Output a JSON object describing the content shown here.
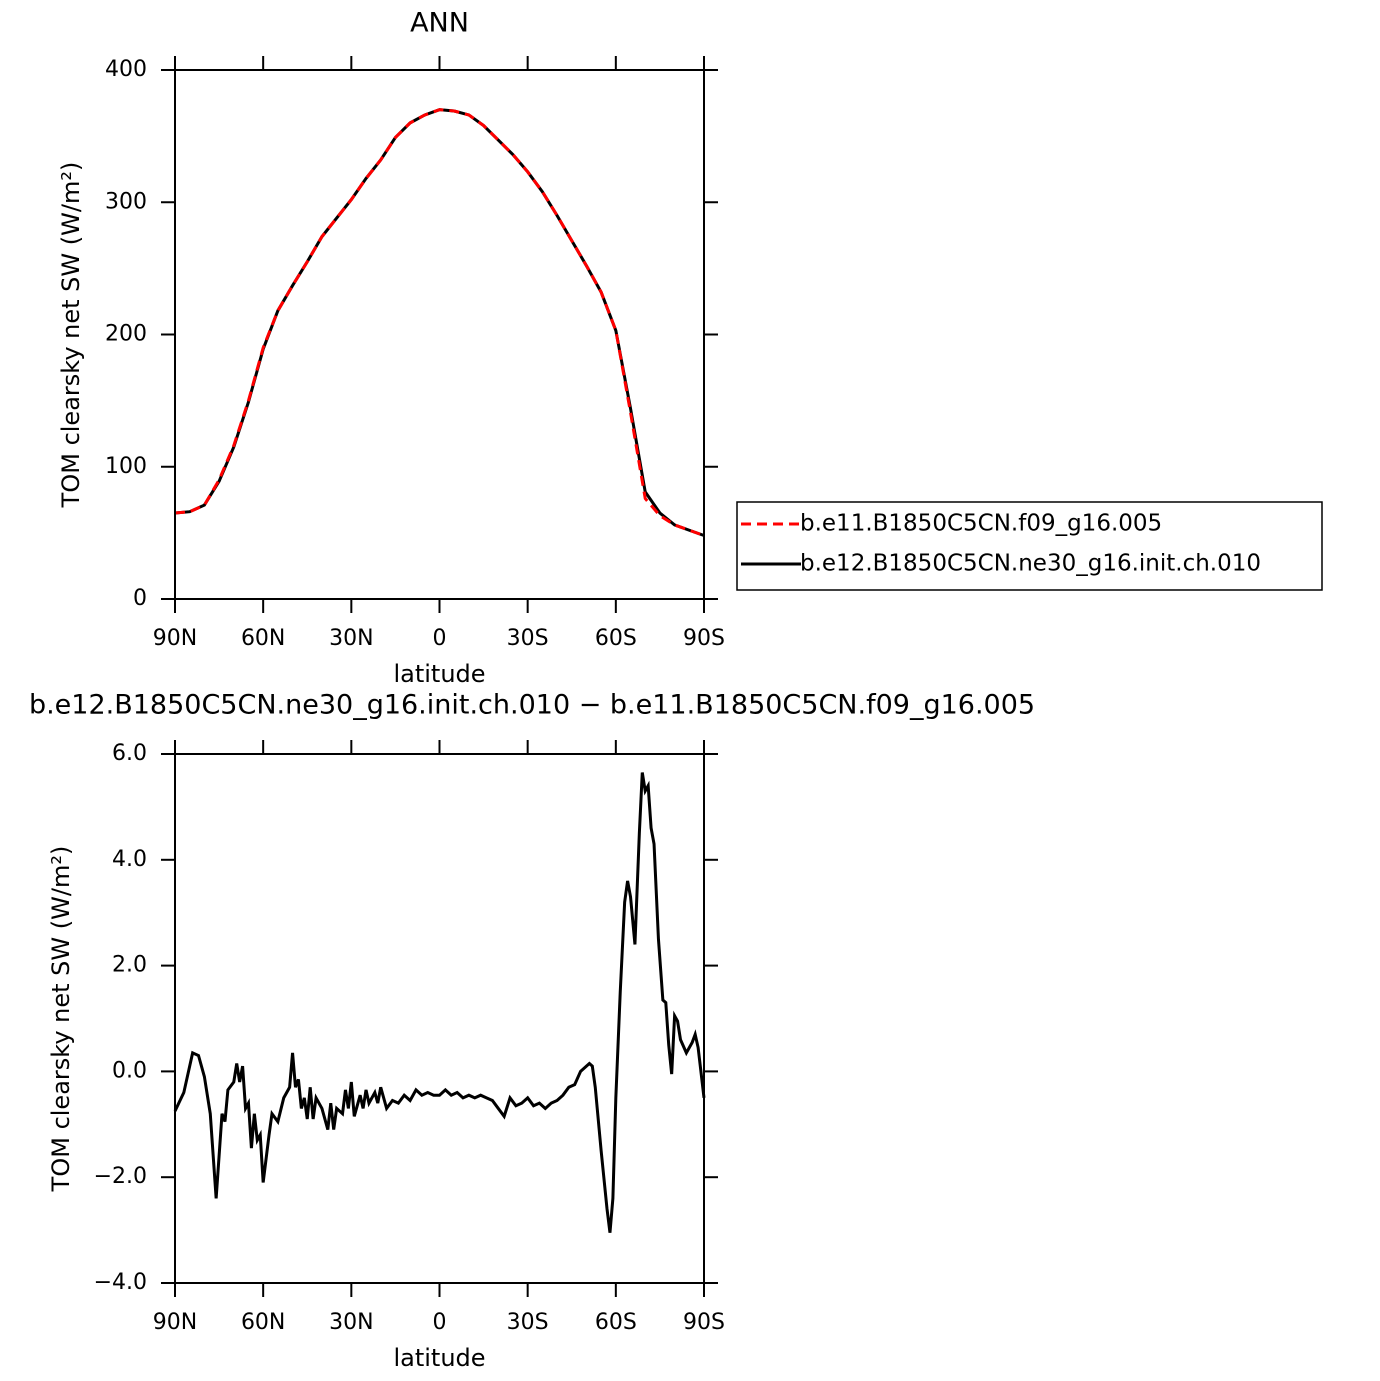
{
  "chart_data": [
    {
      "type": "line",
      "title": "ANN",
      "xlabel": "latitude",
      "ylabel": "TOM clearsky net SW (W/m²)",
      "x": [
        90,
        85,
        80,
        75,
        70,
        65,
        60,
        55,
        50,
        45,
        40,
        35,
        30,
        25,
        20,
        15,
        10,
        5,
        0,
        -5,
        -10,
        -15,
        -20,
        -25,
        -30,
        -35,
        -40,
        -45,
        -50,
        -55,
        -60,
        -65,
        -70,
        -75,
        -80,
        -85,
        -90
      ],
      "series": [
        {
          "name": "b.e11.B1850C5CN.f09_g16.005",
          "color": "#ff0000",
          "linestyle": "dashed",
          "values": [
            65,
            66,
            71,
            90,
            116,
            150,
            190,
            218,
            237,
            255,
            274,
            288,
            302,
            318,
            332,
            349,
            360,
            366,
            370,
            369,
            366,
            358,
            347,
            336,
            323,
            308,
            290,
            271,
            252,
            232,
            203,
            141,
            76,
            63,
            56,
            52,
            48
          ]
        },
        {
          "name": "b.e12.B1850C5CN.ne30_g16.init.ch.010",
          "color": "#000000",
          "linestyle": "solid",
          "values": [
            65,
            66,
            71,
            89,
            115,
            149,
            189,
            218,
            237,
            255,
            274,
            288,
            302,
            318,
            332,
            349,
            360,
            366,
            370,
            369,
            366,
            358,
            347,
            336,
            323,
            308,
            290,
            271,
            252,
            232,
            203,
            144,
            81,
            65,
            56,
            52,
            48
          ]
        }
      ],
      "xlim": [
        90,
        -90
      ],
      "xticks": [
        {
          "value": 90,
          "label": "90N"
        },
        {
          "value": 60,
          "label": "60N"
        },
        {
          "value": 30,
          "label": "30N"
        },
        0,
        {
          "value": -30,
          "label": "30S"
        },
        {
          "value": -60,
          "label": "60S"
        },
        {
          "value": -90,
          "label": "90S"
        }
      ],
      "ylim": [
        0,
        400
      ],
      "yticks": [
        0,
        100,
        200,
        300,
        400
      ],
      "legend": "right"
    },
    {
      "type": "line",
      "title": "b.e12.B1850C5CN.ne30_g16.init.ch.010 − b.e11.B1850C5CN.f09_g16.005",
      "xlabel": "latitude",
      "ylabel": "TOM clearsky net SW (W/m²)",
      "x": [
        90,
        87,
        84,
        82,
        80,
        78,
        76,
        74,
        73,
        72,
        70,
        69,
        68,
        67,
        66,
        65,
        64,
        63,
        62,
        61,
        60,
        58,
        57,
        55,
        53,
        51,
        50,
        49,
        48,
        47,
        46,
        45,
        44,
        43,
        42,
        40,
        38,
        37,
        36,
        35,
        33,
        32,
        31,
        30,
        29,
        27,
        26,
        25,
        24,
        22,
        21,
        20,
        18,
        16,
        14,
        12,
        10,
        8,
        6,
        4,
        2,
        0,
        -2,
        -4,
        -6,
        -8,
        -10,
        -12,
        -14,
        -16,
        -18,
        -20,
        -22,
        -24,
        -26,
        -28,
        -30,
        -32,
        -34,
        -36,
        -38,
        -40,
        -42,
        -44,
        -46,
        -48,
        -50,
        -51,
        -52,
        -53,
        -55,
        -57,
        -58,
        -59,
        -60,
        -61.5,
        -63,
        -64,
        -65,
        -66.5,
        -68,
        -69,
        -70,
        -71,
        -72,
        -73,
        -74.5,
        -76,
        -77,
        -78,
        -79,
        -80,
        -81,
        -82,
        -84,
        -86,
        -87,
        -88,
        -90
      ],
      "values": [
        -0.75,
        -0.4,
        0.35,
        0.3,
        -0.1,
        -0.8,
        -2.4,
        -0.8,
        -0.95,
        -0.35,
        -0.2,
        0.15,
        -0.2,
        0.1,
        -0.7,
        -0.6,
        -1.45,
        -0.8,
        -1.3,
        -1.2,
        -2.1,
        -1.2,
        -0.8,
        -0.95,
        -0.5,
        -0.3,
        0.35,
        -0.3,
        -0.15,
        -0.7,
        -0.5,
        -0.9,
        -0.3,
        -0.9,
        -0.5,
        -0.7,
        -1.1,
        -0.6,
        -1.1,
        -0.7,
        -0.8,
        -0.35,
        -0.7,
        -0.2,
        -0.85,
        -0.45,
        -0.7,
        -0.35,
        -0.6,
        -0.4,
        -0.6,
        -0.3,
        -0.7,
        -0.55,
        -0.6,
        -0.45,
        -0.55,
        -0.35,
        -0.45,
        -0.4,
        -0.45,
        -0.45,
        -0.35,
        -0.45,
        -0.4,
        -0.5,
        -0.45,
        -0.5,
        -0.45,
        -0.5,
        -0.55,
        -0.7,
        -0.85,
        -0.5,
        -0.65,
        -0.6,
        -0.5,
        -0.65,
        -0.6,
        -0.7,
        -0.6,
        -0.55,
        -0.45,
        -0.3,
        -0.25,
        0.0,
        0.1,
        0.15,
        0.1,
        -0.3,
        -1.5,
        -2.6,
        -3.05,
        -2.4,
        -0.5,
        1.5,
        3.2,
        3.6,
        3.3,
        2.4,
        4.5,
        5.65,
        5.3,
        5.4,
        4.6,
        4.3,
        2.5,
        1.35,
        1.3,
        0.5,
        -0.05,
        1.05,
        0.95,
        0.6,
        0.35,
        0.55,
        0.7,
        0.45,
        -0.5
      ],
      "color": "#000000",
      "xlim": [
        90,
        -90
      ],
      "xticks": [
        {
          "value": 90,
          "label": "90N"
        },
        {
          "value": 60,
          "label": "60N"
        },
        {
          "value": 30,
          "label": "30N"
        },
        0,
        {
          "value": -30,
          "label": "30S"
        },
        {
          "value": -60,
          "label": "60S"
        },
        {
          "value": -90,
          "label": "90S"
        }
      ],
      "ylim": [
        -4,
        6
      ],
      "yticks": [
        {
          "value": -4,
          "label": "−4.0"
        },
        {
          "value": -2,
          "label": "−2.0"
        },
        {
          "value": 0,
          "label": "0.0"
        },
        {
          "value": 2,
          "label": "2.0"
        },
        {
          "value": 4,
          "label": "4.0"
        },
        {
          "value": 6,
          "label": "6.0"
        }
      ]
    }
  ]
}
